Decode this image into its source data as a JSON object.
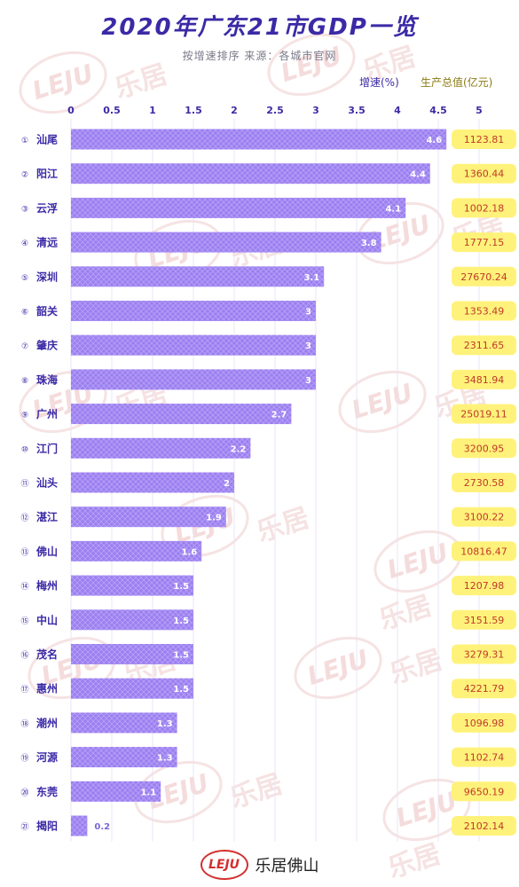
{
  "title": "2020年广东21市GDP一览",
  "subtitle": "按增速排序   来源：各城市官网",
  "legend": {
    "rate": "增速(%)",
    "gdp": "生产总值(亿元)"
  },
  "footer": {
    "logo": "LEJU",
    "brand": "乐居佛山"
  },
  "watermark": {
    "logo": "LEJU",
    "text": "乐居"
  },
  "colors": {
    "bar": "#9b7ff0",
    "title": "#3b2aa6",
    "gdp_bg": "#fff27a",
    "gdp_text": "#c0392b"
  },
  "chart_data": {
    "type": "bar",
    "orientation": "horizontal",
    "xlim": [
      0,
      5
    ],
    "x_ticks": [
      "0",
      "0.5",
      "1",
      "1.5",
      "2",
      "2.5",
      "3",
      "3.5",
      "4",
      "4.5",
      "5"
    ],
    "ranks": [
      "①",
      "②",
      "③",
      "④",
      "⑤",
      "⑥",
      "⑦",
      "⑧",
      "⑨",
      "⑩",
      "⑪",
      "⑫",
      "⑬",
      "⑭",
      "⑮",
      "⑯",
      "⑰",
      "⑱",
      "⑲",
      "⑳",
      "㉑"
    ],
    "categories": [
      "汕尾",
      "阳江",
      "云浮",
      "清远",
      "深圳",
      "韶关",
      "肇庆",
      "珠海",
      "广州",
      "江门",
      "汕头",
      "湛江",
      "佛山",
      "梅州",
      "中山",
      "茂名",
      "惠州",
      "潮州",
      "河源",
      "东莞",
      "揭阳"
    ],
    "value_labels": [
      "4.6",
      "4.4",
      "4.1",
      "3.8",
      "3.1",
      "3",
      "3",
      "3",
      "2.7",
      "2.2",
      "2",
      "1.9",
      "1.6",
      "1.5",
      "1.5",
      "1.5",
      "1.5",
      "1.3",
      "1.3",
      "1.1",
      "0.2"
    ],
    "values": [
      4.6,
      4.4,
      4.1,
      3.8,
      3.1,
      3,
      3,
      3,
      2.7,
      2.2,
      2,
      1.9,
      1.6,
      1.5,
      1.5,
      1.5,
      1.5,
      1.3,
      1.3,
      1.1,
      0.2
    ],
    "gdp": [
      "1123.81",
      "1360.44",
      "1002.18",
      "1777.15",
      "27670.24",
      "1353.49",
      "2311.65",
      "3481.94",
      "25019.11",
      "3200.95",
      "2730.58",
      "3100.22",
      "10816.47",
      "1207.98",
      "3151.59",
      "3279.31",
      "4221.79",
      "1096.98",
      "1102.74",
      "9650.19",
      "2102.14"
    ]
  }
}
